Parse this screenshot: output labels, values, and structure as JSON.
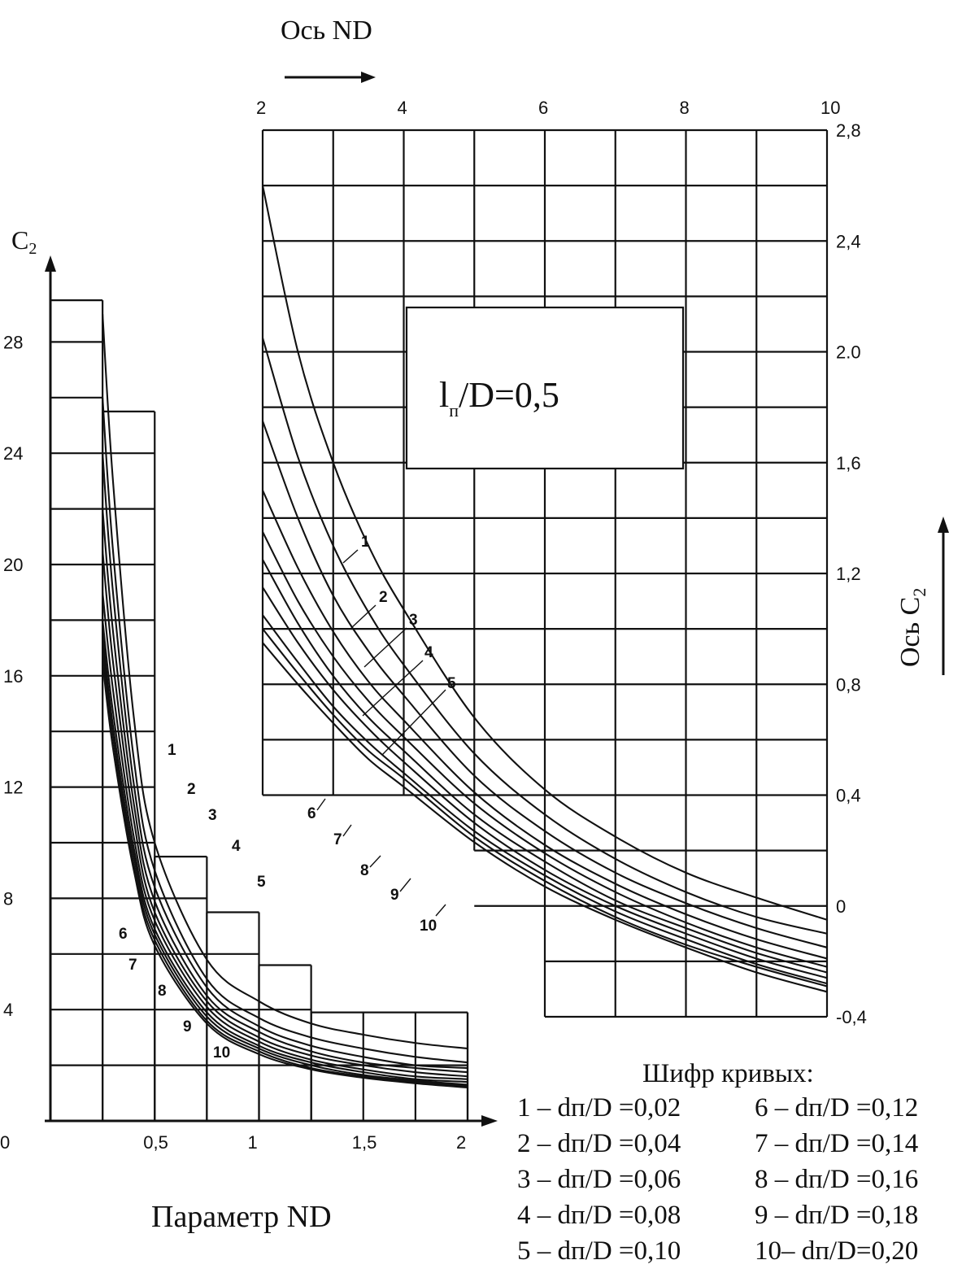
{
  "chart_data": [
    {
      "type": "line",
      "xlabel": "Параметр ND",
      "ylabel": "C₂",
      "xlim": [
        0,
        2
      ],
      "ylim": [
        0,
        30
      ],
      "x_ticks": [
        "0,5",
        "1",
        "1,5",
        "2"
      ],
      "y_ticks": [
        "0",
        "4",
        "8",
        "12",
        "16",
        "20",
        "24",
        "28"
      ],
      "grid": true,
      "x": [
        0.25,
        0.3,
        0.4,
        0.5,
        0.75,
        1.0,
        1.25,
        1.5,
        1.75,
        2.0
      ],
      "series": [
        {
          "name": "1",
          "values": [
            29.0,
            23.0,
            14.5,
            10.0,
            5.8,
            4.3,
            3.5,
            3.1,
            2.8,
            2.6
          ]
        },
        {
          "name": "2",
          "values": [
            26.0,
            20.5,
            13.0,
            9.0,
            5.1,
            3.7,
            3.0,
            2.6,
            2.3,
            2.1
          ]
        },
        {
          "name": "3",
          "values": [
            24.0,
            19.0,
            12.1,
            8.4,
            4.8,
            3.4,
            2.7,
            2.3,
            2.0,
            1.9
          ]
        },
        {
          "name": "4",
          "values": [
            22.0,
            17.6,
            11.4,
            7.9,
            4.5,
            3.2,
            2.5,
            2.1,
            1.9,
            1.75
          ]
        },
        {
          "name": "5",
          "values": [
            20.5,
            16.5,
            10.8,
            7.5,
            4.3,
            3.0,
            2.35,
            2.0,
            1.75,
            1.6
          ]
        },
        {
          "name": "6",
          "values": [
            19.0,
            15.5,
            10.2,
            7.2,
            4.1,
            2.85,
            2.2,
            1.85,
            1.6,
            1.5
          ]
        },
        {
          "name": "7",
          "values": [
            18.0,
            14.7,
            9.8,
            6.9,
            3.9,
            2.7,
            2.1,
            1.75,
            1.5,
            1.4
          ]
        },
        {
          "name": "8",
          "values": [
            17.5,
            14.2,
            9.5,
            6.7,
            3.75,
            2.6,
            2.0,
            1.65,
            1.45,
            1.3
          ]
        },
        {
          "name": "9",
          "values": [
            17.0,
            13.8,
            9.2,
            6.5,
            3.6,
            2.5,
            1.9,
            1.6,
            1.4,
            1.25
          ]
        },
        {
          "name": "10",
          "values": [
            16.5,
            13.4,
            9.0,
            6.3,
            3.5,
            2.4,
            1.85,
            1.55,
            1.35,
            1.2
          ]
        }
      ]
    },
    {
      "type": "line",
      "xlabel": "Ось ND",
      "ylabel": "Ось C₂",
      "annotation": "l п/D=0,5",
      "xlim": [
        2,
        10
      ],
      "ylim": [
        -0.4,
        2.8
      ],
      "x_ticks": [
        "2",
        "4",
        "6",
        "8",
        "10"
      ],
      "y_ticks": [
        "2,8",
        "2,4",
        "2.0",
        "1,6",
        "1,2",
        "0,8",
        "0,4",
        "0",
        "-0,4"
      ],
      "grid": true,
      "x": [
        2,
        2.5,
        3,
        3.5,
        4,
        5,
        6,
        7,
        8,
        9,
        10
      ],
      "series": [
        {
          "name": "1",
          "values": [
            2.6,
            2.0,
            1.6,
            1.3,
            1.07,
            0.68,
            0.42,
            0.25,
            0.12,
            0.03,
            -0.05
          ]
        },
        {
          "name": "2",
          "values": [
            2.05,
            1.62,
            1.3,
            1.06,
            0.87,
            0.55,
            0.33,
            0.17,
            0.05,
            -0.04,
            -0.1
          ]
        },
        {
          "name": "3",
          "values": [
            1.75,
            1.4,
            1.12,
            0.92,
            0.76,
            0.47,
            0.27,
            0.12,
            0.01,
            -0.08,
            -0.15
          ]
        },
        {
          "name": "4",
          "values": [
            1.5,
            1.22,
            0.99,
            0.81,
            0.67,
            0.41,
            0.22,
            0.08,
            -0.03,
            -0.12,
            -0.19
          ]
        },
        {
          "name": "5",
          "values": [
            1.35,
            1.1,
            0.9,
            0.74,
            0.61,
            0.37,
            0.19,
            0.05,
            -0.06,
            -0.15,
            -0.22
          ]
        },
        {
          "name": "6",
          "values": [
            1.25,
            1.02,
            0.83,
            0.68,
            0.56,
            0.33,
            0.16,
            0.02,
            -0.08,
            -0.17,
            -0.24
          ]
        },
        {
          "name": "7",
          "values": [
            1.15,
            0.95,
            0.78,
            0.64,
            0.52,
            0.3,
            0.13,
            0.0,
            -0.1,
            -0.19,
            -0.26
          ]
        },
        {
          "name": "8",
          "values": [
            1.05,
            0.88,
            0.72,
            0.59,
            0.48,
            0.27,
            0.11,
            -0.02,
            -0.12,
            -0.21,
            -0.28
          ]
        },
        {
          "name": "9",
          "values": [
            1.0,
            0.84,
            0.69,
            0.56,
            0.46,
            0.25,
            0.09,
            -0.04,
            -0.14,
            -0.22,
            -0.29
          ]
        },
        {
          "name": "10",
          "values": [
            0.95,
            0.8,
            0.66,
            0.53,
            0.43,
            0.23,
            0.07,
            -0.05,
            -0.15,
            -0.24,
            -0.31
          ]
        }
      ]
    }
  ],
  "legend": {
    "title": "Шифр кривых:",
    "entries": [
      "1 – dп/D =0,02",
      "2 – dп/D =0,04",
      "3 – dп/D =0,06",
      "4 – dп/D =0,08",
      "5 – dп/D =0,10",
      "6 – dп/D =0,12",
      "7 – dп/D =0,14",
      "8 – dп/D =0,16",
      "9 – dп/D =0,18",
      "10– dп/D=0,20"
    ]
  },
  "top_axis_title": "Ось ND",
  "right_axis_title": "Ось C₂",
  "left_axis_title": "C₂",
  "bottom_axis_title": "Параметр ND",
  "inset_label": "l п/D=0,5"
}
